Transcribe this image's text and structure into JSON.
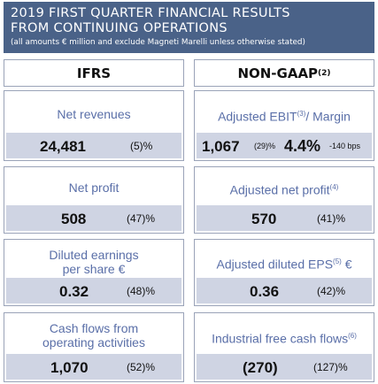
{
  "header": {
    "title_line1": "2019 FIRST QUARTER FINANCIAL RESULTS",
    "title_line2": "FROM CONTINUING OPERATIONS",
    "subtitle": "(all amounts € million and exclude Magneti Marelli unless otherwise stated)"
  },
  "columns": {
    "left": "IFRS",
    "right": "NON-GAAP",
    "right_note": "(2)"
  },
  "ifrs": {
    "net_revenues": {
      "label": "Net revenues",
      "value": "24,481",
      "change": "(5)%"
    },
    "net_profit": {
      "label": "Net profit",
      "value": "508",
      "change": "(47)%"
    },
    "diluted_eps": {
      "label_line1": "Diluted earnings",
      "label_line2": "per share €",
      "value": "0.32",
      "change": "(48)%"
    },
    "operating_cash": {
      "label_line1": "Cash flows from",
      "label_line2": "operating activities",
      "value": "1,070",
      "change": "(52)%"
    }
  },
  "nongaap": {
    "adj_ebit": {
      "label": "Adjusted EBIT",
      "note": "(3)",
      "label_suffix": "/ Margin",
      "value": "1,067",
      "change": "(29)%",
      "margin": "4.4%",
      "margin_change": "-140 bps"
    },
    "adj_net_profit": {
      "label": "Adjusted net profit",
      "note": "(4)",
      "value": "570",
      "change": "(41)%"
    },
    "adj_eps": {
      "label": "Adjusted diluted EPS",
      "note": "(5)",
      "label_suffix": " €",
      "value": "0.36",
      "change": "(42)%"
    },
    "free_cash": {
      "label": "Industrial free cash flows",
      "note": "(6)",
      "value": "(270)",
      "change": "(127)%"
    }
  }
}
